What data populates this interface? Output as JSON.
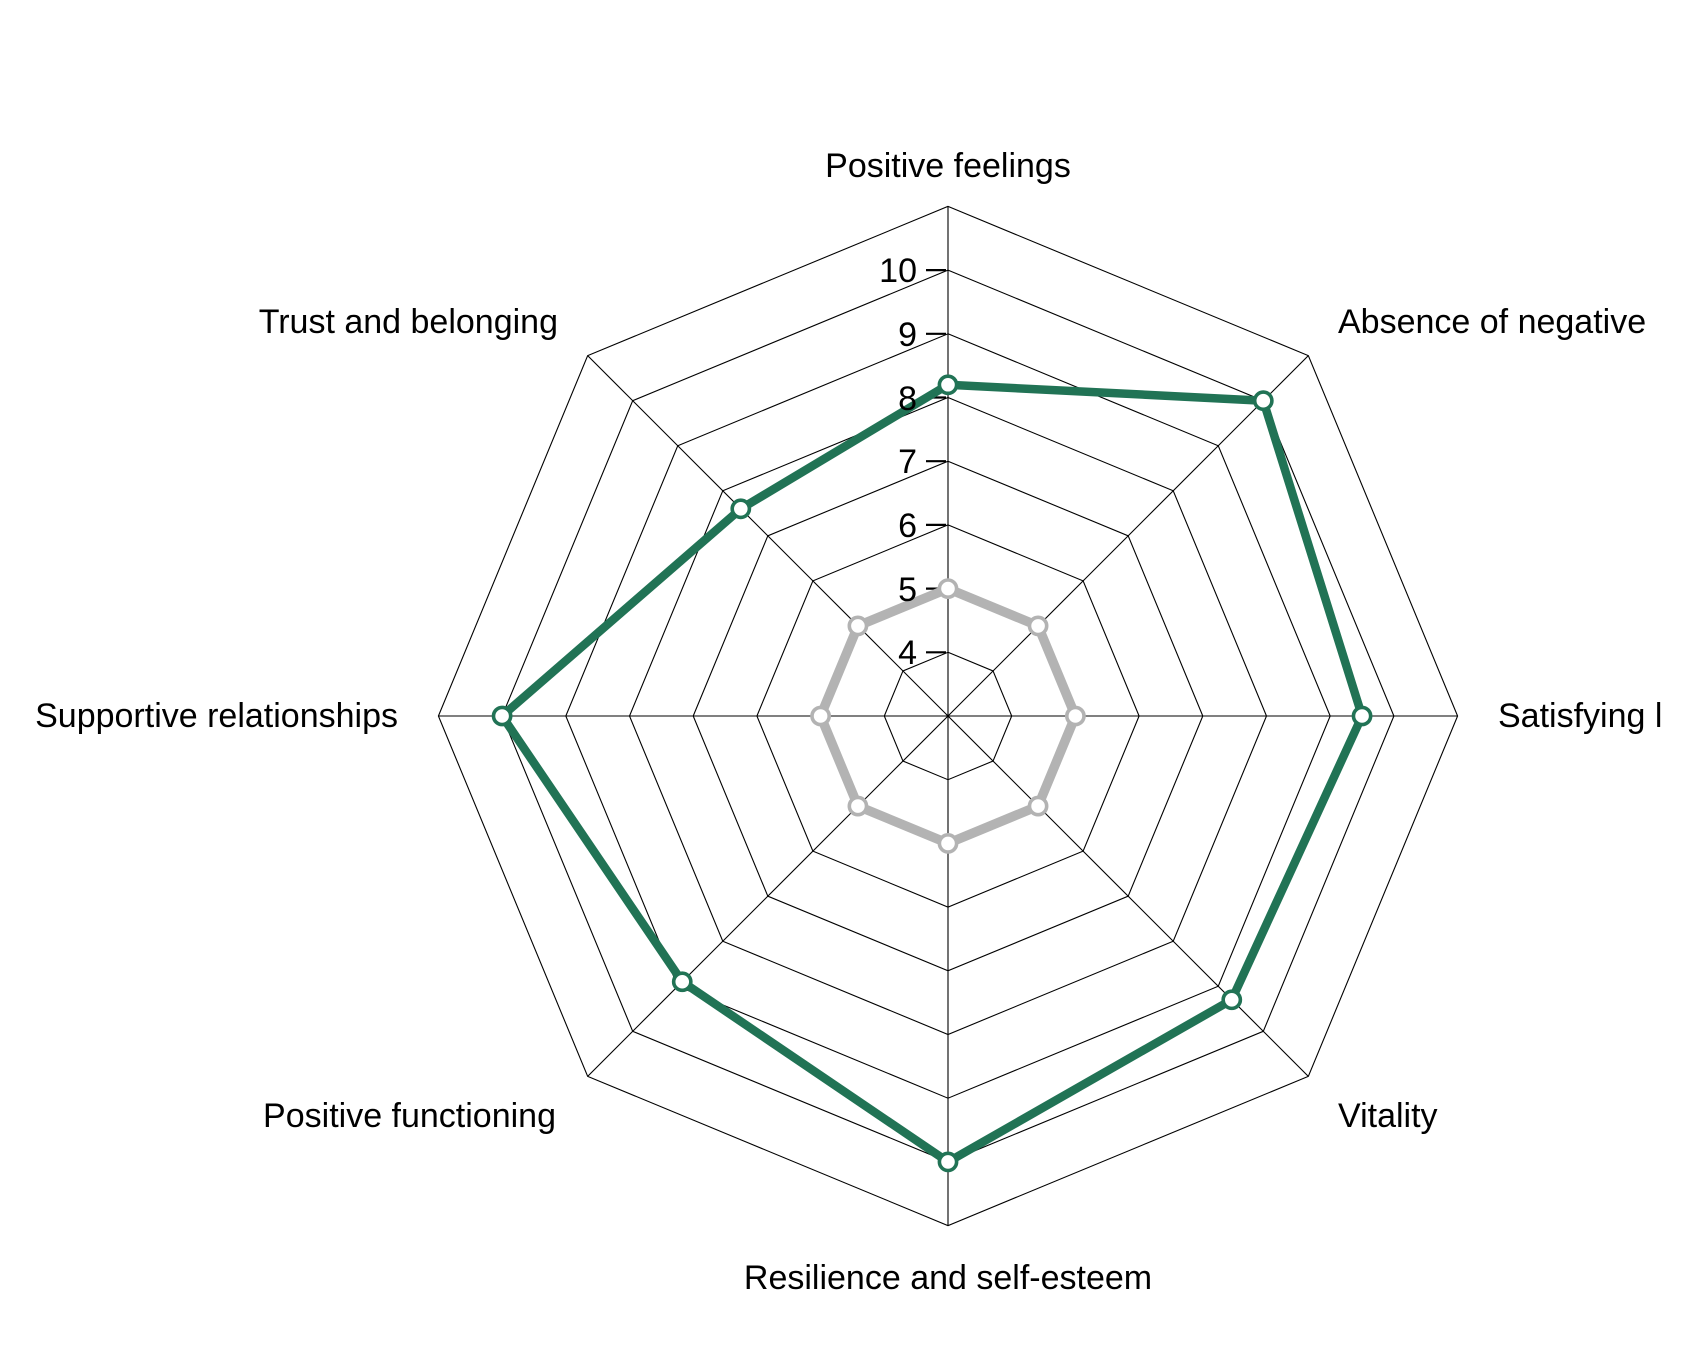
{
  "figure": {
    "background": "#ffffff",
    "grid_color": "#000000"
  },
  "chart_data": {
    "type": "radar",
    "title": "",
    "categories": [
      "Positive feelings",
      "Absence of negative",
      "Satisfying l",
      "Vitality",
      "Resilience and self-esteem",
      "Positive functioning",
      "Supportive relationships",
      "Trust and belonging"
    ],
    "series": [
      {
        "id": "green-profile",
        "color": "#217355",
        "marker": "circle-white-fill",
        "values": [
          8.2,
          10.0,
          9.5,
          9.3,
          10.0,
          8.9,
          10.0,
          7.6
        ]
      },
      {
        "id": "gray-reference",
        "color": "#B3B3B3",
        "marker": "circle-white-fill",
        "values": [
          5.0,
          5.0,
          5.0,
          5.0,
          5.0,
          5.0,
          5.0,
          5.0
        ]
      }
    ],
    "radial_axis": {
      "center_value": 3,
      "outer_value": 11,
      "tick_values": [
        4,
        5,
        6,
        7,
        8,
        9,
        10
      ],
      "tick_labels": [
        "4",
        "5",
        "6",
        "7",
        "8",
        "9",
        "10"
      ]
    },
    "grid": {
      "shape": "octagon-web",
      "ring_values": [
        4,
        5,
        6,
        7,
        8,
        9,
        10,
        11
      ]
    },
    "legend_position": "none"
  }
}
